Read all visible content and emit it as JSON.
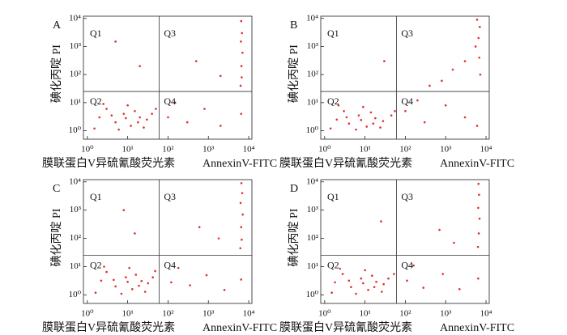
{
  "chart_data": [
    {
      "type": "scatter",
      "panel_label": "A",
      "xlabel": "膜联蛋白V异硫氰酸荧光素",
      "xlabel_en": "AnnexinV-FITC",
      "ylabel": "碘化丙啶 PI",
      "log": true,
      "color": "#e0302a",
      "quadrant_labels": [
        "Q1",
        "Q2",
        "Q3",
        "Q4"
      ],
      "quadrant_lines": {
        "x": 60,
        "y": 25
      },
      "xlim": [
        0.8,
        12000
      ],
      "ylim": [
        0.5,
        12000
      ],
      "xticks": [
        {
          "value": 1,
          "label": "10⁰"
        },
        {
          "value": 10,
          "label": "10¹"
        },
        {
          "value": 100,
          "label": "10²"
        },
        {
          "value": 1000,
          "label": "10³"
        },
        {
          "value": 10000,
          "label": "10⁴"
        }
      ],
      "yticks": [
        {
          "value": 1,
          "label": "10⁰"
        },
        {
          "value": 10,
          "label": "10¹"
        },
        {
          "value": 100,
          "label": "10²"
        },
        {
          "value": 1000,
          "label": "10³"
        },
        {
          "value": 10000,
          "label": "10⁴"
        }
      ],
      "x": [
        2,
        5,
        8,
        12,
        20,
        3,
        15,
        30,
        1.5,
        6,
        10,
        25,
        40,
        4,
        18,
        50,
        9,
        2.5,
        100,
        300,
        800,
        2000,
        6500,
        150,
        6500,
        6800,
        6400,
        7000,
        6600,
        6700,
        6300,
        500,
        2000,
        20,
        5
      ],
      "y": [
        3,
        2,
        4,
        1.5,
        3,
        6,
        5,
        2.5,
        1.2,
        1.1,
        8,
        1.3,
        4,
        3.5,
        2,
        6,
        2.8,
        9,
        3,
        2,
        6,
        1.5,
        4,
        10,
        8000,
        3000,
        1500,
        600,
        200,
        80,
        40,
        300,
        90,
        200,
        1500
      ]
    },
    {
      "type": "scatter",
      "panel_label": "B",
      "xlabel": "膜联蛋白V异硫氰酸荧光素",
      "xlabel_en": "AnnexinV-FITC",
      "ylabel": "碘化丙啶 PI",
      "log": true,
      "color": "#e0302a",
      "quadrant_labels": [
        "Q1",
        "Q2",
        "Q3",
        "Q4"
      ],
      "quadrant_lines": {
        "x": 60,
        "y": 25
      },
      "xlim": [
        0.8,
        12000
      ],
      "ylim": [
        0.5,
        12000
      ],
      "xticks": [
        {
          "value": 1,
          "label": "10⁰"
        },
        {
          "value": 10,
          "label": "10¹"
        },
        {
          "value": 100,
          "label": "10²"
        },
        {
          "value": 1000,
          "label": "10³"
        },
        {
          "value": 10000,
          "label": "10⁴"
        }
      ],
      "yticks": [
        {
          "value": 1,
          "label": "10⁰"
        },
        {
          "value": 10,
          "label": "10¹"
        },
        {
          "value": 100,
          "label": "10²"
        },
        {
          "value": 1000,
          "label": "10³"
        },
        {
          "value": 10000,
          "label": "10⁴"
        }
      ],
      "x": [
        2,
        4,
        7,
        11,
        18,
        3,
        14,
        28,
        1.4,
        6,
        9,
        24,
        45,
        3.5,
        16,
        55,
        8,
        2.2,
        100,
        300,
        1000,
        3000,
        6000,
        200,
        6000,
        7000,
        6500,
        5500,
        6800,
        3000,
        1500,
        800,
        7200,
        400,
        30
      ],
      "y": [
        2.5,
        1.8,
        3.5,
        1.4,
        2.8,
        5,
        4.5,
        2.2,
        1.2,
        1.1,
        7,
        1.3,
        3.5,
        3,
        1.8,
        5,
        2.4,
        8,
        5,
        2,
        8,
        3,
        1.5,
        12,
        9000,
        5000,
        2000,
        1000,
        400,
        300,
        150,
        60,
        100,
        40,
        300
      ]
    },
    {
      "type": "scatter",
      "panel_label": "C",
      "xlabel": "膜联蛋白V异硫氰酸荧光素",
      "xlabel_en": "AnnexinV-FITC",
      "ylabel": "碘化丙啶 PI",
      "log": true,
      "color": "#e0302a",
      "quadrant_labels": [
        "Q1",
        "Q2",
        "Q3",
        "Q4"
      ],
      "quadrant_lines": {
        "x": 60,
        "y": 25
      },
      "xlim": [
        0.8,
        12000
      ],
      "ylim": [
        0.5,
        12000
      ],
      "xticks": [
        {
          "value": 1,
          "label": "10⁰"
        },
        {
          "value": 10,
          "label": "10¹"
        },
        {
          "value": 100,
          "label": "10²"
        },
        {
          "value": 1000,
          "label": "10³"
        },
        {
          "value": 10000,
          "label": "10⁴"
        }
      ],
      "yticks": [
        {
          "value": 1,
          "label": "10⁰"
        },
        {
          "value": 10,
          "label": "10¹"
        },
        {
          "value": 100,
          "label": "10²"
        },
        {
          "value": 1000,
          "label": "10³"
        },
        {
          "value": 10000,
          "label": "10⁴"
        }
      ],
      "x": [
        2.2,
        5,
        9,
        13,
        22,
        3,
        16,
        32,
        1.6,
        7,
        11,
        27,
        42,
        4.5,
        19,
        48,
        10,
        2.6,
        120,
        350,
        900,
        2500,
        6500,
        180,
        6600,
        6900,
        6300,
        7100,
        6500,
        6700,
        6200,
        600,
        1800,
        15,
        8
      ],
      "y": [
        3.2,
        2,
        4.2,
        1.6,
        3.1,
        6.5,
        5.2,
        2.6,
        1.2,
        1.1,
        9,
        1.3,
        4.2,
        3.4,
        2.1,
        7,
        2.9,
        10,
        2.8,
        2.2,
        5,
        1.5,
        3.5,
        9,
        9000,
        4000,
        1800,
        700,
        250,
        90,
        45,
        250,
        100,
        150,
        1000
      ]
    },
    {
      "type": "scatter",
      "panel_label": "D",
      "xlabel": "膜联蛋白V异硫氰酸荧光素",
      "xlabel_en": "AnnexinV-FITC",
      "ylabel": "碘化丙啶 PI",
      "log": true,
      "color": "#e0302a",
      "quadrant_labels": [
        "Q1",
        "Q2",
        "Q3",
        "Q4"
      ],
      "quadrant_lines": {
        "x": 60,
        "y": 25
      },
      "xlim": [
        0.8,
        12000
      ],
      "ylim": [
        0.5,
        12000
      ],
      "xticks": [
        {
          "value": 1,
          "label": "10⁰"
        },
        {
          "value": 10,
          "label": "10¹"
        },
        {
          "value": 100,
          "label": "10²"
        },
        {
          "value": 1000,
          "label": "10³"
        },
        {
          "value": 10000,
          "label": "10⁴"
        }
      ],
      "yticks": [
        {
          "value": 1,
          "label": "10⁰"
        },
        {
          "value": 10,
          "label": "10¹"
        },
        {
          "value": 100,
          "label": "10²"
        },
        {
          "value": 1000,
          "label": "10³"
        },
        {
          "value": 10000,
          "label": "10⁴"
        }
      ],
      "x": [
        1.8,
        4.5,
        8,
        12,
        19,
        2.8,
        15,
        29,
        1.5,
        6,
        10,
        26,
        38,
        4,
        17,
        52,
        9,
        2.4,
        110,
        280,
        850,
        2200,
        6400,
        160,
        6500,
        6700,
        6400,
        6900,
        6600,
        6300,
        700,
        1600,
        25
      ],
      "y": [
        2.8,
        1.9,
        3.8,
        1.5,
        2.9,
        5.5,
        4.8,
        2.4,
        1.2,
        1.1,
        7.5,
        1.3,
        3.8,
        3.2,
        1.9,
        5.5,
        2.6,
        8.5,
        3.2,
        1.8,
        5.5,
        1.6,
        3.8,
        11,
        8500,
        3500,
        1200,
        500,
        150,
        50,
        200,
        70,
        400
      ]
    }
  ]
}
